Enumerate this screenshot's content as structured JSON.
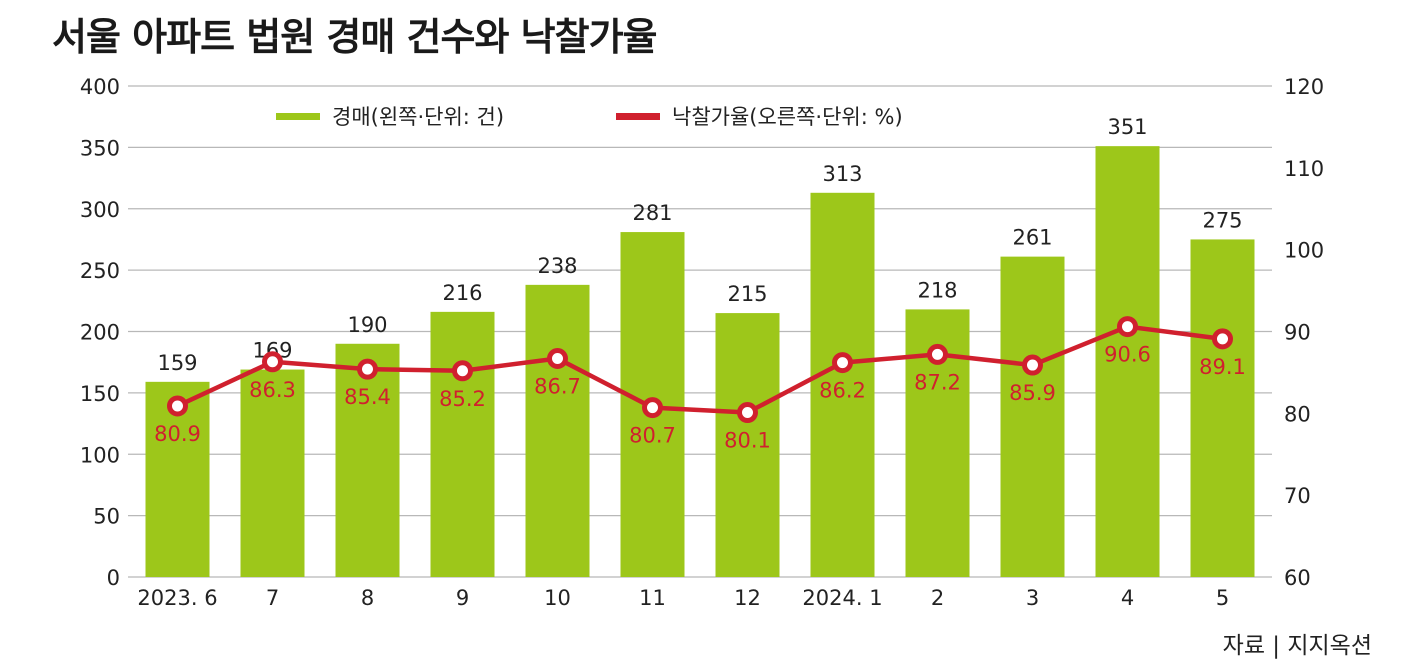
{
  "title": "서울 아파트 법원 경매 건수와 낙찰가율",
  "source": "자료 | 지지옥션",
  "colors": {
    "bar": "#9DC71A",
    "line": "#D0202E",
    "grid": "#B8B8B8",
    "text": "#222222"
  },
  "chart_data": {
    "type": "bar+line",
    "categories": [
      "2023. 6",
      "7",
      "8",
      "9",
      "10",
      "11",
      "12",
      "2024. 1",
      "2",
      "3",
      "4",
      "5"
    ],
    "series": [
      {
        "name": "경매(왼쪽·단위: 건)",
        "type": "bar",
        "axis": "left",
        "values": [
          159,
          169,
          190,
          216,
          238,
          281,
          215,
          313,
          218,
          261,
          351,
          275
        ]
      },
      {
        "name": "낙찰가율(오른쪽·단위: %)",
        "type": "line",
        "axis": "right",
        "values": [
          80.9,
          86.3,
          85.4,
          85.2,
          86.7,
          80.7,
          80.1,
          86.2,
          87.2,
          85.9,
          90.6,
          89.1
        ]
      }
    ],
    "left_axis": {
      "ylim": [
        0,
        400
      ],
      "ticks": [
        0,
        50,
        100,
        150,
        200,
        250,
        300,
        350,
        400
      ]
    },
    "right_axis": {
      "ylim": [
        60,
        120
      ],
      "ticks": [
        60,
        70,
        80,
        90,
        100,
        110,
        120
      ]
    },
    "grid": true,
    "legend_position": "top-center"
  }
}
